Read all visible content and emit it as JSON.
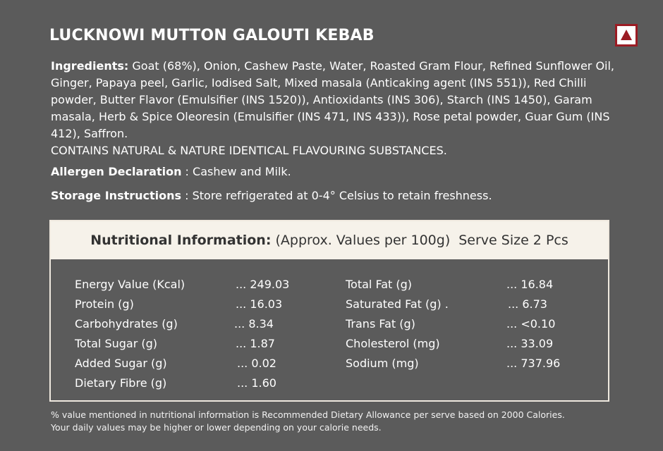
{
  "product": {
    "title": "LUCKNOWI MUTTON GALOUTI KEBAB",
    "mark_icon": "non-veg-triangle-mark"
  },
  "ingredients": {
    "label": "Ingredients:",
    "text": " Goat (68%), Onion, Cashew Paste, Water, Roasted Gram Flour, Refined Sunflower Oil, Ginger, Papaya peel, Garlic, Iodised Salt, Mixed masala (Anticaking agent (INS 551)), Red Chilli powder, Butter Flavor (Emulsifier (INS 1520)), Antioxidants (INS 306), Starch (INS 1450), Garam masala, Herb & Spice Oleoresin (Emulsifier (INS 471, INS 433)), Rose petal powder, Guar Gum (INS 412), Saffron.",
    "contains": "CONTAINS NATURAL & NATURE IDENTICAL FLAVOURING SUBSTANCES."
  },
  "allergen": {
    "label": "Allergen Declaration",
    "text": " : Cashew and Milk."
  },
  "storage": {
    "label": "Storage Instructions",
    "text": " : Store refrigerated at 0-4° Celsius to retain freshness."
  },
  "nutrition": {
    "heading": "Nutritional Information:",
    "basis": "(Approx. Values per 100g)",
    "serve": "Serve Size 2 Pcs",
    "left": [
      {
        "name": "Energy Value (Kcal)",
        "value": "... 249.03"
      },
      {
        "name": "Protein (g)",
        "value": "... 16.03"
      },
      {
        "name": "Carbohydrates (g)",
        "value": "... 8.34"
      },
      {
        "name": "Total Sugar (g)",
        "value": "... 1.87"
      },
      {
        "name": "Added Sugar (g)",
        "value": "... 0.02"
      },
      {
        "name": "Dietary Fibre (g)",
        "value": "... 1.60"
      }
    ],
    "right": [
      {
        "name": "Total Fat (g)",
        "value": "... 16.84"
      },
      {
        "name": "Saturated Fat (g) .",
        "value": "... 6.73"
      },
      {
        "name": "Trans Fat (g)",
        "value": "... <0.10"
      },
      {
        "name": "Cholesterol (mg)",
        "value": "... 33.09"
      },
      {
        "name": "Sodium (mg)",
        "value": "... 737.96"
      }
    ]
  },
  "footnote": {
    "line1": "% value mentioned in nutritional information is Recommended Dietary Allowance per serve based on 2000 Calories.",
    "line2": "Your daily values may be higher or lower depending on your calorie needs."
  }
}
